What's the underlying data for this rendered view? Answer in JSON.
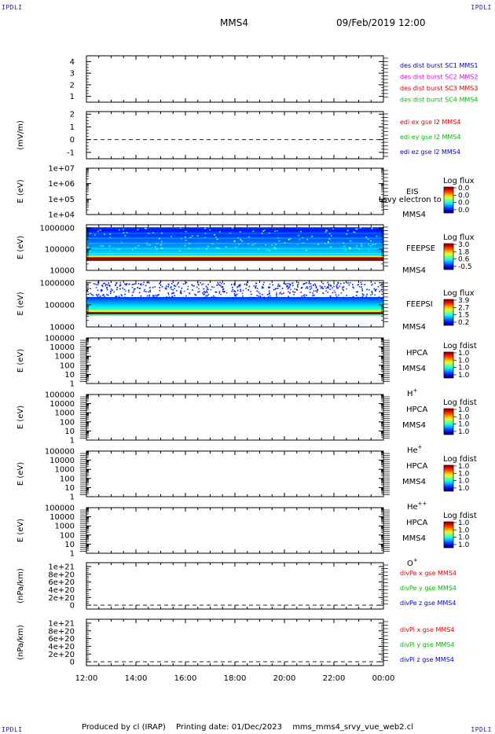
{
  "corners": {
    "tl": "IPDLI",
    "tr": "IPDLI",
    "bl": "IPDLI",
    "br": "IPDLI"
  },
  "header": {
    "spacecraft": "MMS4",
    "datetime": "09/Feb/2019 12:00"
  },
  "footer": {
    "produced": "Produced by cl (IRAP)",
    "printing": "Printing date: 01/Dec/2023",
    "script": "mms_mms4_srvy_vue_web2.cl"
  },
  "colors": {
    "blue": "#0000cc",
    "magenta": "#dd00dd",
    "red": "#dd0000",
    "green": "#00bb00"
  },
  "chart_data": [
    {
      "type": "line",
      "id": "des",
      "ylabel": "",
      "yticks": [
        "4",
        "3",
        "2",
        "1"
      ],
      "ylim": [
        0.5,
        4.5
      ],
      "legend": [
        {
          "name": "des dist burst SC1 MMS1",
          "color": "blue"
        },
        {
          "name": "des dist burst SC2 MMS2",
          "color": "magenta"
        },
        {
          "name": "des dist burst SC3 MMS3",
          "color": "red"
        },
        {
          "name": "des dist burst SC4 MMS4",
          "color": "green"
        }
      ]
    },
    {
      "type": "line",
      "id": "edi",
      "ylabel": "(mV/m)",
      "yticks": [
        "2",
        "1",
        "0",
        "-1"
      ],
      "ylim": [
        -1.5,
        2.2
      ],
      "zero_line": true,
      "legend": [
        {
          "name": "edi ex gse l2 MMS4",
          "color": "red"
        },
        {
          "name": "edi ey gse l2 MMS4",
          "color": "green"
        },
        {
          "name": "edi ez gse l2 MMS4",
          "color": "blue"
        }
      ]
    },
    {
      "type": "heatmap",
      "id": "eis",
      "ylabel": "E (eV)",
      "yticks": [
        "1e+07",
        "1e+06",
        "1e+05",
        "1e+04"
      ],
      "log_range": [
        4,
        7
      ],
      "instrument": "EIS",
      "spacecraft": "MMS4",
      "overlay": "Lsvy electron to",
      "colorbar": {
        "title": "Log flux",
        "ticks": [
          "0.0",
          "0.0",
          "0.0",
          "0.0"
        ]
      },
      "fill": "none"
    },
    {
      "type": "heatmap",
      "id": "feepse",
      "ylabel": "E (eV)",
      "yticks": [
        "1000000",
        "100000",
        "10000"
      ],
      "log_range": [
        4,
        6.15
      ],
      "instrument": "FEEPSE",
      "spacecraft": "MMS4",
      "colorbar": {
        "title": "Log flux",
        "ticks": [
          "3.0",
          "1.8",
          "0.6",
          "-0.5"
        ]
      },
      "fill": "electron"
    },
    {
      "type": "heatmap",
      "id": "feepsi",
      "ylabel": "E (eV)",
      "yticks": [
        "1000000",
        "100000",
        "10000"
      ],
      "log_range": [
        4,
        6.1
      ],
      "instrument": "FEEPSI",
      "spacecraft": "MMS4",
      "colorbar": {
        "title": "Log flux",
        "ticks": [
          "3.9",
          "2.7",
          "1.5",
          "0.2"
        ]
      },
      "fill": "ion"
    },
    {
      "type": "heatmap",
      "id": "hpca_h",
      "ylabel": "E (eV)",
      "yticks": [
        "100000",
        "10000",
        "1000",
        "100",
        "10",
        "1"
      ],
      "log_range": [
        0,
        5
      ],
      "instrument": "HPCA",
      "spacecraft": "MMS4",
      "species": "H",
      "species_sup": "+",
      "colorbar": {
        "title": "Log fdist",
        "ticks": [
          "1.0",
          "1.0",
          "1.0",
          "1.0"
        ]
      },
      "fill": "none"
    },
    {
      "type": "heatmap",
      "id": "hpca_he",
      "ylabel": "E (eV)",
      "yticks": [
        "100000",
        "10000",
        "1000",
        "100",
        "10",
        "1"
      ],
      "log_range": [
        0,
        5
      ],
      "instrument": "HPCA",
      "spacecraft": "MMS4",
      "species": "He",
      "species_sup": "+",
      "colorbar": {
        "title": "Log fdist",
        "ticks": [
          "1.0",
          "1.0",
          "1.0",
          "1.0"
        ]
      },
      "fill": "none"
    },
    {
      "type": "heatmap",
      "id": "hpca_hepp",
      "ylabel": "E (eV)",
      "yticks": [
        "100000",
        "10000",
        "1000",
        "100",
        "10",
        "1"
      ],
      "log_range": [
        0,
        5
      ],
      "instrument": "HPCA",
      "spacecraft": "MMS4",
      "species": "He",
      "species_sup": "++",
      "colorbar": {
        "title": "Log fdist",
        "ticks": [
          "1.0",
          "1.0",
          "1.0",
          "1.0"
        ]
      },
      "fill": "none"
    },
    {
      "type": "heatmap",
      "id": "hpca_o",
      "ylabel": "E (eV)",
      "yticks": [
        "100000",
        "10000",
        "1000",
        "100",
        "10",
        "1"
      ],
      "log_range": [
        0,
        5
      ],
      "instrument": "HPCA",
      "spacecraft": "MMS4",
      "species": "O",
      "species_sup": "+",
      "colorbar": {
        "title": "Log fdist",
        "ticks": [
          "1.0",
          "1.0",
          "1.0",
          "1.0"
        ]
      },
      "fill": "none"
    },
    {
      "type": "line",
      "id": "divpe",
      "ylabel": "(nPa/km)",
      "yticks": [
        "1e+21",
        "8e+20",
        "6e+20",
        "4e+20",
        "2e+20",
        "0"
      ],
      "ylim": [
        -1e+20,
        1.1e+21
      ],
      "zero_line": true,
      "legend": [
        {
          "name": "divPe x gse MMS4",
          "color": "red"
        },
        {
          "name": "divPe y gse MMS4",
          "color": "green"
        },
        {
          "name": "divPe z gse MMS4",
          "color": "blue"
        }
      ]
    },
    {
      "type": "line",
      "id": "divpi",
      "ylabel": "(nPa/km)",
      "yticks": [
        "1e+21",
        "8e+20",
        "6e+20",
        "4e+20",
        "2e+20",
        "0"
      ],
      "ylim": [
        -1e+20,
        1.1e+21
      ],
      "zero_line": true,
      "legend": [
        {
          "name": "divPi x gse MMS4",
          "color": "red"
        },
        {
          "name": "divPi y gse MMS4",
          "color": "green"
        },
        {
          "name": "divPi z gse MMS4",
          "color": "blue"
        }
      ]
    }
  ],
  "xaxis": {
    "ticks": [
      "12:00",
      "14:00",
      "16:00",
      "18:00",
      "20:00",
      "22:00",
      "00:00"
    ],
    "range_hours": [
      12,
      24
    ]
  }
}
